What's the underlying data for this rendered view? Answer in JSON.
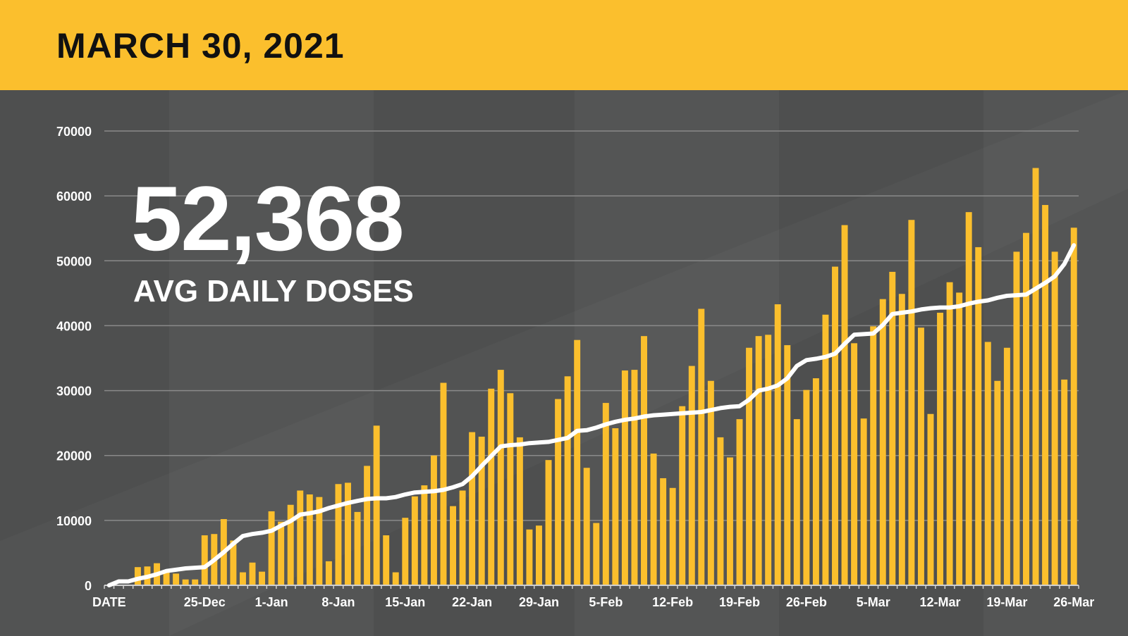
{
  "header": {
    "title": "MARCH 30, 2021"
  },
  "headline": {
    "value": "52,368",
    "label": "AVG DAILY DOSES"
  },
  "colors": {
    "header_bg": "#fbbf2d",
    "background": "#505151",
    "bar": "#fbbf2d",
    "line": "#ffffff",
    "grid": "#8a8a8a",
    "text": "#ffffff"
  },
  "chart_data": {
    "type": "bar",
    "combo_line": "7-day average",
    "title": "",
    "xlabel": "",
    "ylabel": "",
    "ylim": [
      0,
      70000
    ],
    "y_ticks": [
      0,
      10000,
      20000,
      30000,
      40000,
      50000,
      60000,
      70000
    ],
    "x_first_label": "DATE",
    "x_tick_labels": [
      "25-Dec",
      "1-Jan",
      "8-Jan",
      "15-Jan",
      "22-Jan",
      "29-Jan",
      "5-Feb",
      "12-Feb",
      "19-Feb",
      "26-Feb",
      "5-Mar",
      "12-Mar",
      "19-Mar",
      "26-Mar"
    ],
    "grid": true,
    "legend": "none",
    "series": [
      {
        "type": "bar",
        "values": [
          0,
          0,
          0,
          2800,
          2900,
          3400,
          2100,
          1800,
          900,
          900,
          7700,
          7900,
          10200,
          6900,
          2000,
          3500,
          2100,
          11400,
          9800,
          12400,
          14600,
          14000,
          13600,
          3700,
          15600,
          15800,
          11300,
          18400,
          24600,
          7700,
          2000,
          10400,
          13700,
          15400,
          20000,
          31200,
          12200,
          14600,
          23600,
          22900,
          30300,
          33200,
          29600,
          22800,
          8600,
          9200,
          19300,
          28700,
          32200,
          37800,
          18100,
          9600,
          28100,
          24200,
          33100,
          33200,
          38400,
          20300,
          16500,
          15000,
          27600,
          33800,
          42600,
          31500,
          22800,
          19700,
          25600,
          36600,
          38400,
          38600,
          43300,
          37000,
          25600,
          30100,
          31900,
          41700,
          49100,
          55500,
          37300,
          25700,
          39900,
          44100,
          48300,
          44900,
          56300,
          39700,
          26400,
          42000,
          46700,
          45100,
          57500,
          52100,
          37500,
          31500,
          36600,
          51400,
          54300,
          64300,
          58600,
          51400,
          31700,
          55100
        ]
      },
      {
        "type": "line",
        "values": [
          0,
          600,
          600,
          1000,
          1300,
          1700,
          2200,
          2400,
          2600,
          2700,
          2800,
          3900,
          5100,
          6400,
          7600,
          7900,
          8100,
          8400,
          9200,
          9900,
          10900,
          11100,
          11400,
          11900,
          12300,
          12700,
          13000,
          13300,
          13400,
          13400,
          13600,
          14000,
          14300,
          14400,
          14500,
          14700,
          15100,
          15600,
          16800,
          18400,
          19900,
          21400,
          21600,
          21700,
          21900,
          22000,
          22100,
          22400,
          22700,
          23800,
          23900,
          24300,
          24800,
          25200,
          25500,
          25700,
          26000,
          26200,
          26300,
          26400,
          26500,
          26600,
          26700,
          27000,
          27300,
          27500,
          27600,
          28600,
          30000,
          30300,
          30800,
          31900,
          33800,
          34700,
          34900,
          35200,
          35700,
          37200,
          38600,
          38700,
          38800,
          40100,
          41800,
          42000,
          42200,
          42500,
          42700,
          42800,
          42800,
          43000,
          43400,
          43700,
          43900,
          44300,
          44600,
          44700,
          44800,
          45700,
          46600,
          47600,
          49500,
          52400
        ]
      }
    ]
  }
}
